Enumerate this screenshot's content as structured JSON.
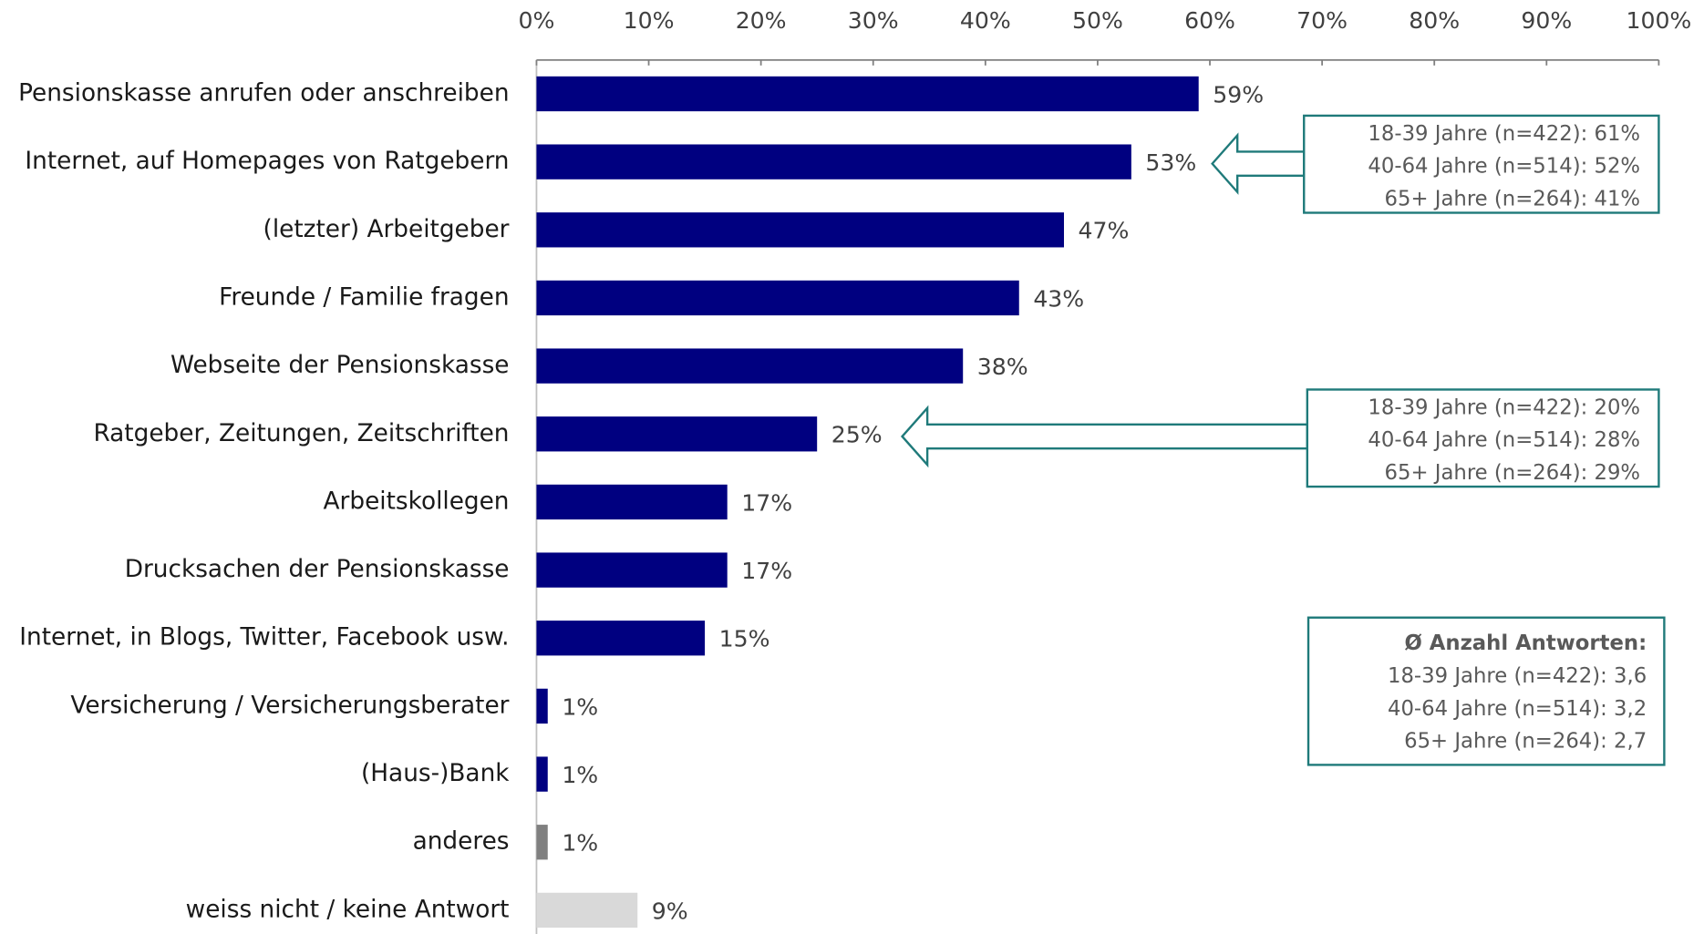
{
  "chart_data": {
    "type": "bar",
    "orientation": "horizontal",
    "categories": [
      "Pensionskasse anrufen oder anschreiben",
      "Internet, auf Homepages von Ratgebern",
      "(letzter) Arbeitgeber",
      "Freunde / Familie fragen",
      "Webseite der Pensionskasse",
      "Ratgeber, Zeitungen, Zeitschriften",
      "Arbeitskollegen",
      "Drucksachen der Pensionskasse",
      "Internet, in Blogs, Twitter, Facebook usw.",
      "Versicherung / Versicherungsberater",
      "(Haus-)Bank",
      "anderes",
      "weiss nicht / keine Antwort"
    ],
    "values": [
      59,
      53,
      47,
      43,
      38,
      25,
      17,
      17,
      15,
      1,
      1,
      1,
      9
    ],
    "value_labels": [
      "59%",
      "53%",
      "47%",
      "43%",
      "38%",
      "25%",
      "17%",
      "17%",
      "15%",
      "1%",
      "1%",
      "1%",
      "9%"
    ],
    "colors": [
      "#000080",
      "#000080",
      "#000080",
      "#000080",
      "#000080",
      "#000080",
      "#000080",
      "#000080",
      "#000080",
      "#000080",
      "#000080",
      "#808080",
      "#d9d9d9"
    ],
    "xlim": [
      0,
      100
    ],
    "xticks": [
      {
        "value": 0,
        "label": "0%"
      },
      {
        "value": 10,
        "label": "10%"
      },
      {
        "value": 20,
        "label": "20%"
      },
      {
        "value": 30,
        "label": "30%"
      },
      {
        "value": 40,
        "label": "40%"
      },
      {
        "value": 50,
        "label": "50%"
      },
      {
        "value": 60,
        "label": "60%"
      },
      {
        "value": 70,
        "label": "70%"
      },
      {
        "value": 80,
        "label": "80%"
      },
      {
        "value": 90,
        "label": "90%"
      },
      {
        "value": 100,
        "label": "100%"
      }
    ],
    "annotations": [
      {
        "lines": [
          "18-39 Jahre (n=422): 61%",
          "40-64 Jahre (n=514): 52%",
          "65+ Jahre (n=264): 41%"
        ]
      },
      {
        "lines": [
          "18-39 Jahre (n=422): 20%",
          "40-64 Jahre (n=514): 28%",
          "65+ Jahre (n=264): 29%"
        ]
      },
      {
        "title": "Ø Anzahl Antworten:",
        "lines": [
          "18-39 Jahre (n=422): 3,6",
          "40-64 Jahre (n=514): 3,2",
          "65+ Jahre (n=264): 2,7"
        ]
      }
    ]
  }
}
